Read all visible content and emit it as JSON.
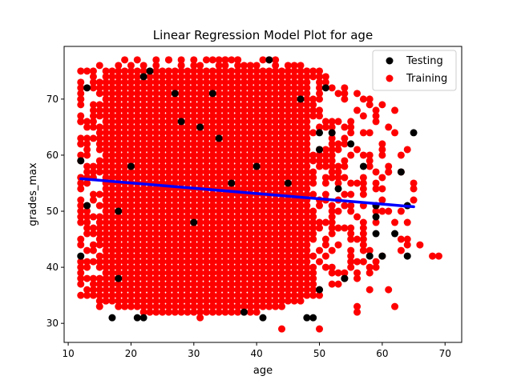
{
  "chart_data": {
    "type": "scatter",
    "title": "Linear Regression Model Plot for age",
    "xlabel": "age",
    "ylabel": "grades_max",
    "xlim": [
      9.35,
      72.65
    ],
    "ylim": [
      26.6,
      79.4
    ],
    "xticks": [
      10,
      20,
      30,
      40,
      50,
      60,
      70
    ],
    "yticks": [
      30,
      40,
      50,
      60,
      70
    ],
    "grid": false,
    "legend_position": "top-right",
    "colors": {
      "testing": "#000000",
      "training": "#ff0000",
      "regression": "#0000ff"
    },
    "series": [
      {
        "name": "Testing",
        "type": "scatter",
        "points": [
          [
            12,
            59
          ],
          [
            12,
            42
          ],
          [
            13,
            72
          ],
          [
            13,
            51
          ],
          [
            17,
            31
          ],
          [
            18,
            38
          ],
          [
            18,
            50
          ],
          [
            20,
            58
          ],
          [
            21,
            31
          ],
          [
            22,
            31
          ],
          [
            22,
            74
          ],
          [
            23,
            75
          ],
          [
            27,
            71
          ],
          [
            28,
            66
          ],
          [
            30,
            48
          ],
          [
            31,
            65
          ],
          [
            33,
            71
          ],
          [
            34,
            63
          ],
          [
            36,
            55
          ],
          [
            38,
            32
          ],
          [
            40,
            58
          ],
          [
            41,
            31
          ],
          [
            42,
            77
          ],
          [
            45,
            55
          ],
          [
            47,
            70
          ],
          [
            48,
            31
          ],
          [
            49,
            31
          ],
          [
            50,
            61
          ],
          [
            50,
            64
          ],
          [
            50,
            36
          ],
          [
            51,
            72
          ],
          [
            52,
            64
          ],
          [
            53,
            54
          ],
          [
            54,
            38
          ],
          [
            55,
            62
          ],
          [
            57,
            58
          ],
          [
            58,
            42
          ],
          [
            59,
            51
          ],
          [
            59,
            49
          ],
          [
            59,
            46
          ],
          [
            60,
            42
          ],
          [
            62,
            46
          ],
          [
            63,
            57
          ],
          [
            64,
            42
          ],
          [
            64,
            51
          ],
          [
            65,
            64
          ]
        ]
      },
      {
        "name": "Training",
        "type": "scatter",
        "x_range": [
          12,
          69
        ],
        "y_values": [
          29,
          30,
          31,
          32,
          33,
          34,
          35,
          36,
          37,
          38,
          39,
          40,
          41,
          42,
          43,
          44,
          45,
          46,
          47,
          48,
          49,
          50,
          51,
          52,
          53,
          54,
          55,
          56,
          57,
          58,
          59,
          60,
          61,
          62,
          63,
          64,
          65,
          66,
          67,
          68,
          69,
          70,
          71,
          72,
          73,
          74,
          75,
          76,
          77
        ],
        "density_center": [
          31,
          55
        ],
        "outliers": [
          [
            12,
            70
          ],
          [
            12,
            66
          ],
          [
            12,
            62
          ],
          [
            12,
            56
          ],
          [
            12,
            51
          ],
          [
            13,
            48
          ],
          [
            14,
            36
          ],
          [
            15,
            33
          ],
          [
            16,
            34
          ],
          [
            21,
            77
          ],
          [
            26,
            77
          ],
          [
            28,
            76
          ],
          [
            35,
            77
          ],
          [
            37,
            77
          ],
          [
            44,
            29
          ],
          [
            50,
            29
          ],
          [
            56,
            33
          ],
          [
            56,
            32
          ],
          [
            57,
            64
          ],
          [
            58,
            60
          ],
          [
            58,
            36
          ],
          [
            60,
            60
          ],
          [
            61,
            36
          ],
          [
            61,
            57
          ],
          [
            62,
            33
          ],
          [
            63,
            60
          ],
          [
            64,
            44
          ],
          [
            64,
            48
          ],
          [
            65,
            55
          ],
          [
            65,
            52
          ],
          [
            66,
            44
          ],
          [
            68,
            42
          ],
          [
            69,
            42
          ]
        ]
      },
      {
        "name": "Regression",
        "type": "line",
        "points": [
          [
            12,
            55.8
          ],
          [
            65,
            50.8
          ]
        ]
      }
    ],
    "legend": [
      "Testing",
      "Training"
    ]
  }
}
